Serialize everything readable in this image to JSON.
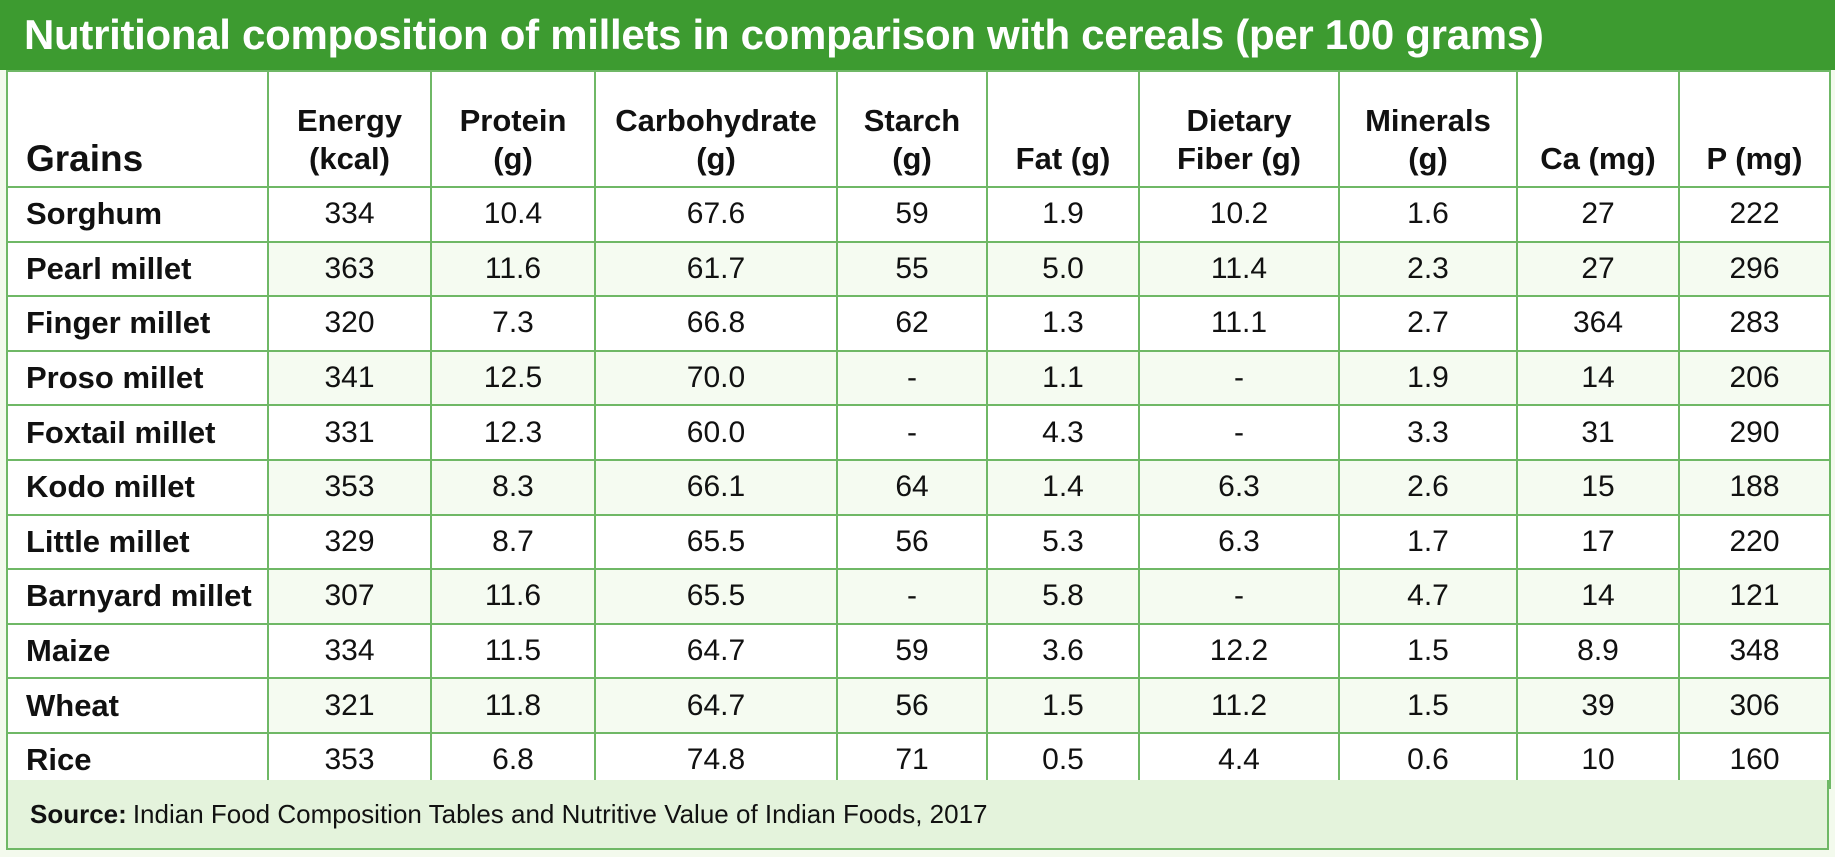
{
  "title": "Nutritional composition of millets in comparison with cereals (per 100 grams)",
  "colors": {
    "title_bg": "#3d9b30",
    "border": "#6fb866",
    "source_bg": "#e4f3dc"
  },
  "table": {
    "headers": [
      {
        "line1": "",
        "line2": "Grains"
      },
      {
        "line1": "Energy",
        "line2": "(kcal)"
      },
      {
        "line1": "Protein",
        "line2": "(g)"
      },
      {
        "line1": "Carbohydrate",
        "line2": "(g)"
      },
      {
        "line1": "Starch",
        "line2": "(g)"
      },
      {
        "line1": "",
        "line2": "Fat (g)"
      },
      {
        "line1": "Dietary",
        "line2": "Fiber (g)"
      },
      {
        "line1": "Minerals",
        "line2": "(g)"
      },
      {
        "line1": "",
        "line2": "Ca (mg)"
      },
      {
        "line1": "",
        "line2": "P (mg)"
      }
    ],
    "rows": [
      [
        "Sorghum",
        "334",
        "10.4",
        "67.6",
        "59",
        "1.9",
        "10.2",
        "1.6",
        "27",
        "222"
      ],
      [
        "Pearl millet",
        "363",
        "11.6",
        "61.7",
        "55",
        "5.0",
        "11.4",
        "2.3",
        "27",
        "296"
      ],
      [
        "Finger millet",
        "320",
        "7.3",
        "66.8",
        "62",
        "1.3",
        "11.1",
        "2.7",
        "364",
        "283"
      ],
      [
        "Proso millet",
        "341",
        "12.5",
        "70.0",
        "-",
        "1.1",
        "-",
        "1.9",
        "14",
        "206"
      ],
      [
        "Foxtail millet",
        "331",
        "12.3",
        "60.0",
        "-",
        "4.3",
        "-",
        "3.3",
        "31",
        "290"
      ],
      [
        "Kodo millet",
        "353",
        "8.3",
        "66.1",
        "64",
        "1.4",
        "6.3",
        "2.6",
        "15",
        "188"
      ],
      [
        "Little millet",
        "329",
        "8.7",
        "65.5",
        "56",
        "5.3",
        "6.3",
        "1.7",
        "17",
        "220"
      ],
      [
        "Barnyard millet",
        "307",
        "11.6",
        "65.5",
        "-",
        "5.8",
        "-",
        "4.7",
        "14",
        "121"
      ],
      [
        "Maize",
        "334",
        "11.5",
        "64.7",
        "59",
        "3.6",
        "12.2",
        "1.5",
        "8.9",
        "348"
      ],
      [
        "Wheat",
        "321",
        "11.8",
        "64.7",
        "56",
        "1.5",
        "11.2",
        "1.5",
        "39",
        "306"
      ],
      [
        "Rice",
        "353",
        "6.8",
        "74.8",
        "71",
        "0.5",
        "4.4",
        "0.6",
        "10",
        "160"
      ]
    ]
  },
  "source": {
    "label": "Source:",
    "text": "Indian Food Composition Tables and Nutritive Value of Indian Foods, 2017"
  }
}
